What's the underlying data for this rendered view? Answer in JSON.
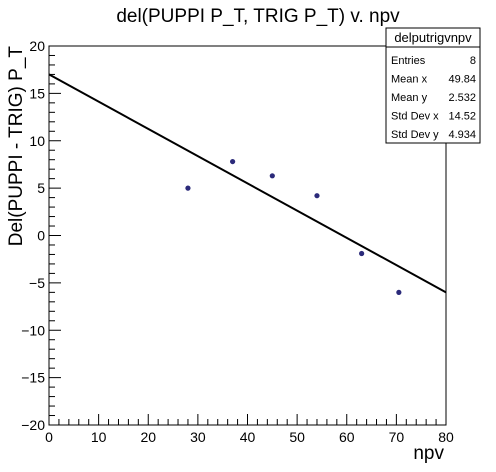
{
  "chart_data": {
    "type": "scatter",
    "title": "del(PUPPI P_T, TRIG P_T) v. npv",
    "xlabel": "npv",
    "ylabel": "Del(PUPPI - TRIG) P_T",
    "xlim": [
      0,
      80
    ],
    "ylim": [
      -20,
      20
    ],
    "x_ticks": [
      "0",
      "10",
      "20",
      "30",
      "40",
      "50",
      "60",
      "70",
      "80"
    ],
    "y_ticks": [
      "−20",
      "−15",
      "−10",
      "−5",
      "0",
      "5",
      "10",
      "15",
      "20"
    ],
    "grid": false,
    "points": [
      {
        "x": 28,
        "y": 5.0
      },
      {
        "x": 37,
        "y": 7.8
      },
      {
        "x": 45,
        "y": 6.3
      },
      {
        "x": 54,
        "y": 4.2
      },
      {
        "x": 63,
        "y": -1.9
      },
      {
        "x": 70.5,
        "y": -6.0
      }
    ],
    "fit_line": {
      "x0": 0,
      "y0": 17.0,
      "x1": 80,
      "y1": -6.0
    },
    "marker_color": "#2b2a7a",
    "line_color": "#000000",
    "stats_box": {
      "name": "delputrigvnpv",
      "entries": [
        {
          "label": "Entries",
          "value": "8"
        },
        {
          "label": "Mean x",
          "value": "49.84"
        },
        {
          "label": "Mean y",
          "value": "2.532"
        },
        {
          "label": "Std Dev x",
          "value": "14.52"
        },
        {
          "label": "Std Dev y",
          "value": "4.934"
        }
      ],
      "placement": "top-right"
    }
  }
}
